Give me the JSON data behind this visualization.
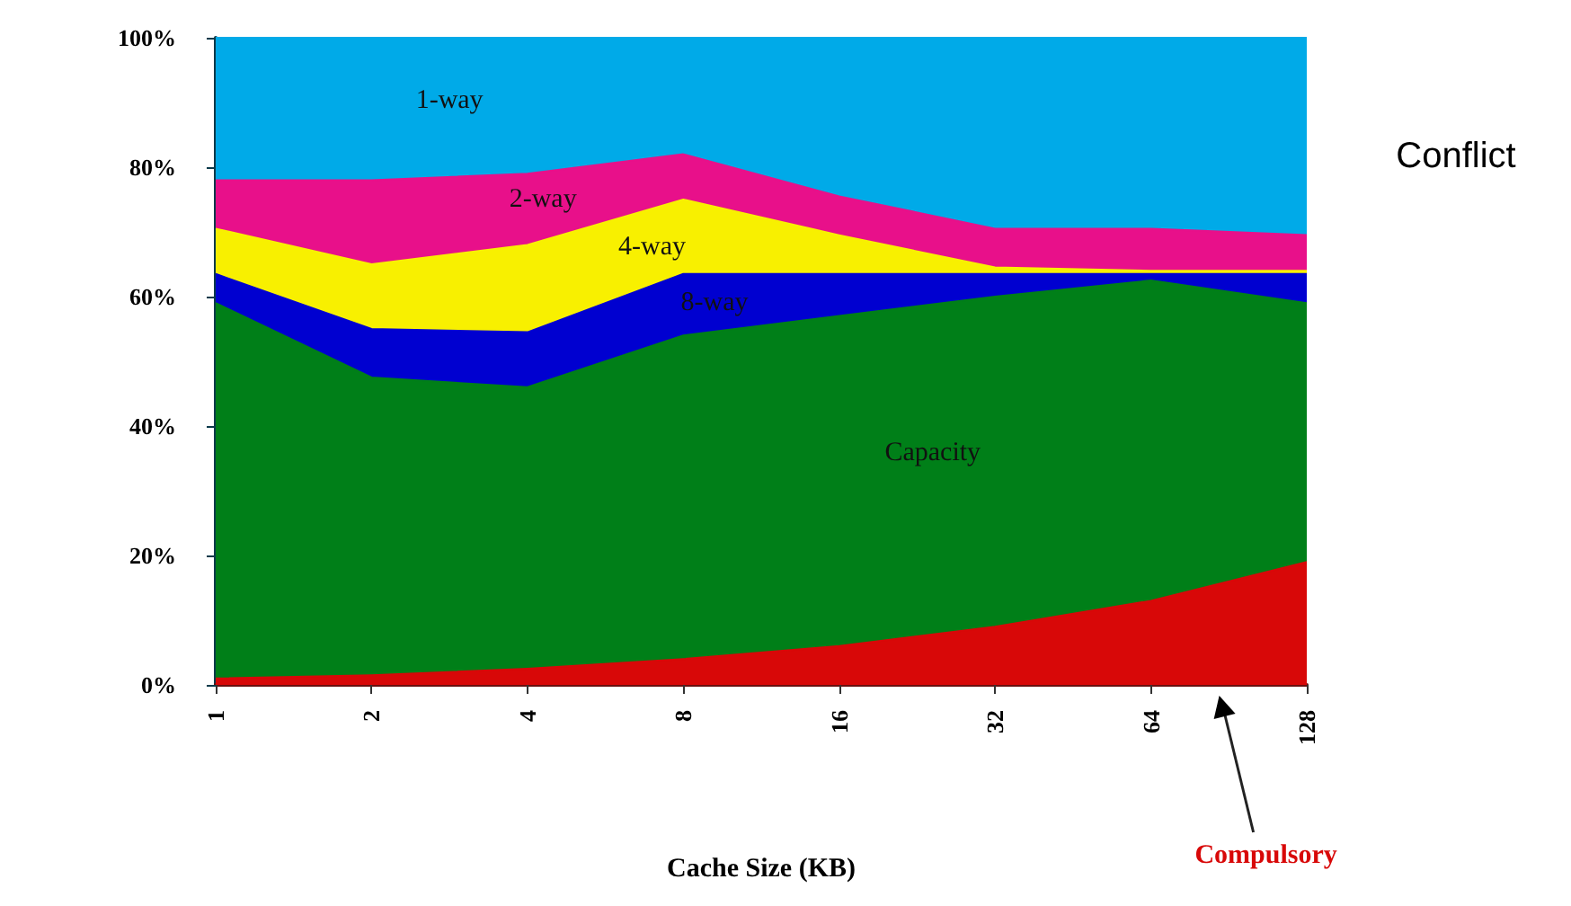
{
  "chart_data": {
    "type": "area",
    "stacked": true,
    "xlabel": "Cache Size (KB)",
    "categories": [
      "1",
      "2",
      "4",
      "8",
      "16",
      "32",
      "64",
      "128"
    ],
    "ylim": [
      0,
      100
    ],
    "yticks": [
      {
        "value": 0,
        "label": "0%"
      },
      {
        "value": 20,
        "label": "20%"
      },
      {
        "value": 40,
        "label": "40%"
      },
      {
        "value": 60,
        "label": "60%"
      },
      {
        "value": 80,
        "label": "80%"
      },
      {
        "value": 100,
        "label": "100%"
      }
    ],
    "grid": false,
    "legend": false,
    "series": [
      {
        "name": "Compulsory",
        "color": "#d80808",
        "values": [
          1,
          1.5,
          2.5,
          4,
          6,
          9,
          13,
          19
        ]
      },
      {
        "name": "Capacity",
        "color": "#007f18",
        "values": [
          58,
          46,
          43.5,
          50,
          51,
          51,
          49.5,
          40
        ]
      },
      {
        "name": "8-way",
        "color": "#0000d0",
        "values": [
          4.5,
          7.5,
          8.5,
          9.5,
          6.5,
          3.5,
          1,
          4.5
        ]
      },
      {
        "name": "4-way",
        "color": "#f8f000",
        "values": [
          7,
          10,
          13.5,
          11.5,
          6,
          1,
          0.5,
          0.5
        ]
      },
      {
        "name": "2-way",
        "color": "#e8108a",
        "values": [
          7.5,
          13,
          11,
          7,
          6,
          6,
          6.5,
          5.5
        ]
      },
      {
        "name": "1-way",
        "color": "#00aae8",
        "values": [
          22,
          22,
          21,
          18,
          24.5,
          29.5,
          29.5,
          30.5
        ]
      }
    ],
    "annotations": [
      "Conflict"
    ]
  }
}
